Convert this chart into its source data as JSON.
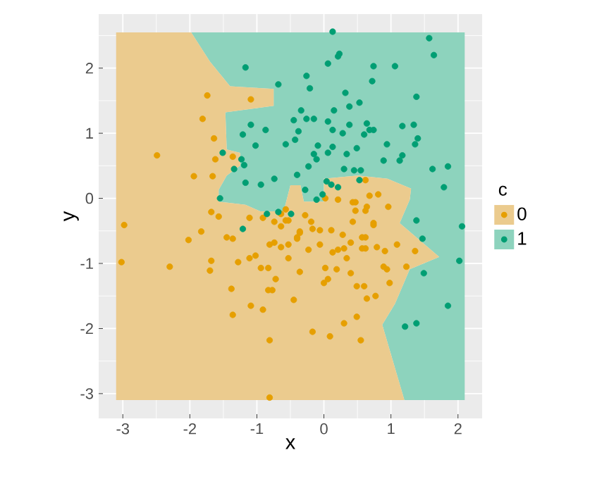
{
  "chart_data": {
    "type": "scatter",
    "xlabel": "x",
    "ylabel": "y",
    "legend_title": "c",
    "xlim": [
      -3.36,
      2.36
    ],
    "ylim": [
      -3.38,
      2.83
    ],
    "xticks": [
      -3,
      -2,
      -1,
      0,
      1,
      2
    ],
    "yticks": [
      -3,
      -2,
      -1,
      0,
      1,
      2
    ],
    "grid": true,
    "legend": "right",
    "series": [
      {
        "type": "area",
        "marker": "none",
        "color": "#ebcb8e",
        "x": [
          -3.1,
          -3.1,
          -1.98,
          -1.7,
          -1.4,
          -0.75,
          -0.75,
          -1.47,
          -1.45,
          -1.25,
          -1.25,
          -1.45,
          -1.57,
          -1.57,
          -1.17,
          -0.95,
          -0.6,
          -0.5,
          -0.35,
          -0.3,
          0.0,
          0.0,
          0.5,
          0.95,
          1.3,
          1.28,
          1.13,
          1.72,
          1.28,
          1.06,
          0.87,
          1.2
        ],
        "values": [
          -3.1,
          2.55,
          2.55,
          2.1,
          1.72,
          1.68,
          1.42,
          1.32,
          0.75,
          0.7,
          0.5,
          0.35,
          0.13,
          -0.05,
          -0.1,
          -0.2,
          -0.2,
          0.2,
          0.2,
          -0.05,
          -0.05,
          0.3,
          0.35,
          0.3,
          0.15,
          -0.02,
          -0.38,
          -0.9,
          -1.09,
          -1.62,
          -1.94,
          -3.1
        ]
      },
      {
        "type": "area",
        "marker": "none",
        "color": "#8dd3bd",
        "x": [
          2.1,
          -1.98,
          -1.7,
          -1.4,
          -0.75,
          -0.75,
          -1.47,
          -1.45,
          -1.25,
          -1.25,
          -1.45,
          -1.57,
          -1.57,
          -1.17,
          -0.95,
          -0.6,
          -0.5,
          -0.35,
          -0.3,
          0.0,
          0.0,
          0.5,
          0.95,
          1.3,
          1.28,
          1.13,
          1.72,
          1.28,
          1.06,
          0.87,
          1.2,
          2.1
        ],
        "values": [
          2.55,
          2.55,
          2.1,
          1.72,
          1.68,
          1.42,
          1.32,
          0.75,
          0.7,
          0.5,
          0.35,
          0.13,
          -0.05,
          -0.1,
          -0.2,
          -0.2,
          0.2,
          0.2,
          -0.05,
          -0.05,
          0.3,
          0.35,
          0.3,
          0.15,
          -0.02,
          -0.38,
          -0.9,
          -1.09,
          -1.62,
          -1.94,
          -3.1,
          -3.1
        ]
      },
      {
        "name": "0",
        "color": "#e69f00",
        "marker": "circle",
        "x": [
          -1.74,
          -1.09,
          -1.81,
          -1.64,
          -2.49,
          -1.62,
          -1.36,
          -1.94,
          -1.66,
          -1.68,
          -1.57,
          -2.98,
          -1.11,
          -0.91,
          0.62,
          0.81,
          0.68,
          0.02,
          0.21,
          0.43,
          0.47,
          0.64,
          0.62,
          0.96,
          0.47,
          0.43,
          0.74,
          -0.57,
          -0.64,
          -0.53,
          -0.28,
          -0.19,
          -1.83,
          -2.02,
          -3.02,
          -2.3,
          -1.68,
          -1.7,
          -1.45,
          -1.36,
          -1.28,
          -1.11,
          -1.02,
          -0.94,
          -0.83,
          -0.72,
          -0.81,
          -0.74,
          -0.64,
          -0.53,
          -0.53,
          -0.36,
          -0.4,
          -0.36,
          -1.38,
          -0.83,
          -0.77,
          -0.45,
          -1.09,
          -0.91,
          -1.36,
          -0.81,
          -0.81,
          -0.74,
          -0.64,
          -0.57,
          -0.17,
          -0.36,
          -0.4,
          -0.06,
          0.11,
          0.28,
          0.4,
          0.57,
          0.62,
          0.74,
          -0.06,
          -0.23,
          0.13,
          0.21,
          0.3,
          0.34,
          0.57,
          0.62,
          0.79,
          0.91,
          1.09,
          1.36,
          1.23,
          0.89,
          0.94,
          0.02,
          0.19,
          0.4,
          0.06,
          0.0,
          0.49,
          0.6,
          0.98,
          0.64,
          0.77,
          0.49,
          0.3,
          -0.17,
          0.09,
          0.55
        ],
        "values": [
          1.58,
          1.52,
          1.22,
          0.92,
          0.66,
          0.6,
          0.64,
          0.34,
          0.34,
          -0.21,
          -0.28,
          -0.41,
          -0.3,
          -0.3,
          0.28,
          0.06,
          0.04,
          0.0,
          -0.02,
          -0.06,
          -0.06,
          -0.13,
          -0.19,
          -0.13,
          -0.19,
          -0.36,
          -0.38,
          -0.17,
          -0.24,
          -0.34,
          -0.26,
          -0.36,
          -0.51,
          -0.64,
          -0.98,
          -1.05,
          -0.96,
          -1.11,
          -0.6,
          -0.62,
          -0.98,
          -0.92,
          -0.88,
          -1.07,
          -1.07,
          -1.24,
          -0.71,
          -0.68,
          -0.75,
          -0.71,
          -0.92,
          -1.13,
          -0.6,
          -0.53,
          -1.39,
          -1.41,
          -1.41,
          -1.56,
          -1.65,
          -1.71,
          -1.79,
          -2.18,
          -3.06,
          -0.36,
          -0.43,
          -0.34,
          -0.47,
          -0.51,
          -0.62,
          -0.49,
          -0.49,
          -0.56,
          -0.68,
          -0.6,
          -0.6,
          -0.41,
          -0.71,
          -0.79,
          -0.83,
          -0.79,
          -0.77,
          -0.92,
          -0.77,
          -0.77,
          -0.75,
          -0.81,
          -0.71,
          -0.81,
          -1.05,
          -1.05,
          -1.09,
          -1.07,
          -1.09,
          -1.15,
          -1.24,
          -1.3,
          -1.35,
          -1.35,
          -1.3,
          -1.54,
          -1.5,
          -1.82,
          -1.92,
          -2.05,
          -2.12,
          -2.18
        ]
      },
      {
        "name": "1",
        "color": "#009e73",
        "marker": "circle",
        "x": [
          0.13,
          1.57,
          1.64,
          0.23,
          0.21,
          0.06,
          0.74,
          1.06,
          -0.26,
          -0.21,
          0.72,
          0.32,
          1.38,
          0.53,
          0.38,
          -0.34,
          0.15,
          -0.45,
          -0.26,
          -0.15,
          0.06,
          0.38,
          0.64,
          1.17,
          1.34,
          -0.38,
          0.13,
          0.28,
          0.68,
          0.74,
          0.6,
          -0.57,
          -0.43,
          -0.09,
          0.94,
          1.4,
          1.36,
          0.13,
          0.06,
          -0.15,
          -0.11,
          0.49,
          0.34,
          1.17,
          1.13,
          0.89,
          -0.23,
          0.3,
          0.45,
          0.55,
          1.62,
          1.85,
          -0.4,
          0.53,
          0.04,
          0.11,
          0.21,
          1.79,
          -0.28,
          -0.02,
          -0.11,
          1.38,
          2.06,
          -1.17,
          -0.68,
          -1.09,
          -0.87,
          -1.21,
          -1.02,
          -1.51,
          -1.23,
          -1.19,
          -1.34,
          -1.17,
          -0.94,
          -0.74,
          -1.55,
          -0.85,
          -0.68,
          -0.49,
          -1.21,
          1.47,
          2.02,
          1.49,
          1.85,
          1.21,
          1.38
        ],
        "values": [
          2.56,
          2.46,
          2.2,
          2.22,
          2.18,
          2.07,
          2.03,
          2.03,
          1.88,
          1.69,
          1.8,
          1.62,
          1.56,
          1.47,
          1.41,
          1.35,
          1.35,
          1.2,
          1.22,
          1.22,
          1.18,
          1.13,
          1.15,
          1.11,
          1.13,
          1.03,
          1.05,
          1.0,
          1.05,
          1.05,
          0.98,
          0.83,
          0.9,
          0.81,
          0.83,
          0.92,
          0.83,
          0.79,
          0.7,
          0.68,
          0.6,
          0.77,
          0.68,
          0.66,
          0.58,
          0.58,
          0.49,
          0.45,
          0.43,
          0.43,
          0.45,
          0.49,
          0.36,
          0.28,
          0.26,
          0.21,
          0.17,
          0.17,
          0.13,
          0.06,
          -0.02,
          -0.34,
          -0.43,
          2.01,
          1.75,
          1.13,
          1.05,
          0.98,
          0.81,
          0.7,
          0.6,
          0.51,
          0.45,
          0.24,
          0.21,
          0.3,
          0.0,
          -0.24,
          -0.21,
          -0.24,
          -0.47,
          -0.62,
          -0.96,
          -1.15,
          -1.65,
          -1.97,
          -1.92
        ]
      }
    ]
  }
}
